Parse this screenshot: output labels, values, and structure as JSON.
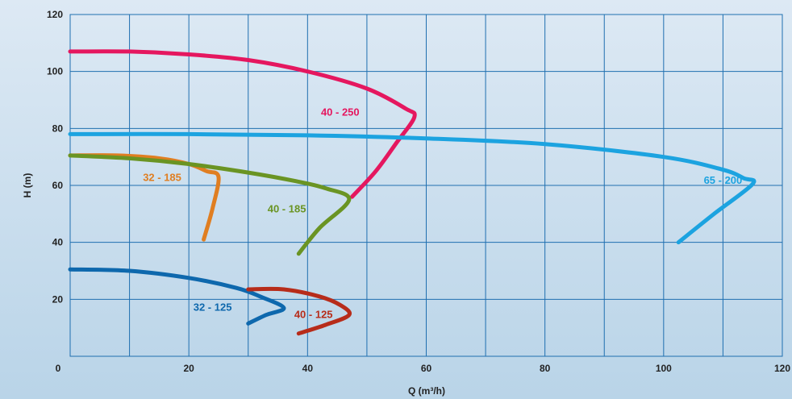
{
  "chart_data": {
    "type": "line",
    "xlabel": "Q (m³/h)",
    "ylabel": "H (m)",
    "xlim": [
      0,
      120
    ],
    "ylim": [
      0,
      120
    ],
    "x_ticks": [
      0,
      20,
      40,
      60,
      80,
      100,
      120
    ],
    "y_ticks": [
      20,
      40,
      60,
      80,
      100,
      120
    ],
    "x_grid_step": 10,
    "y_grid_step": 20,
    "grid": true,
    "series": [
      {
        "name": "40 - 250",
        "color": "#e5175f",
        "x": [
          0,
          10,
          20,
          30,
          40,
          50,
          56.5,
          58,
          55,
          51.5,
          47.5
        ],
        "y": [
          107,
          107,
          106,
          104,
          100,
          94,
          87,
          84,
          75,
          65,
          56
        ]
      },
      {
        "name": "65 - 200",
        "color": "#1ca3e0",
        "x": [
          0,
          20,
          40,
          60,
          80,
          100,
          110,
          113.5,
          115,
          108.5,
          102.5
        ],
        "y": [
          78,
          78,
          77.6,
          76.5,
          74.5,
          70,
          65.5,
          62.5,
          60.5,
          50,
          40
        ]
      },
      {
        "name": "32 - 185",
        "color": "#e07e21",
        "x": [
          0,
          8,
          15,
          20,
          23,
          25,
          24,
          22.5
        ],
        "y": [
          70.5,
          70.5,
          69.5,
          67.5,
          65,
          63,
          52,
          41
        ]
      },
      {
        "name": "40 - 185",
        "color": "#6a9423",
        "x": [
          0,
          10,
          20,
          30,
          38,
          43,
          47,
          42,
          38.5
        ],
        "y": [
          70.5,
          69.5,
          67.5,
          64.5,
          61.5,
          59,
          55,
          45,
          36
        ]
      },
      {
        "name": "32 - 125",
        "color": "#0e68ad",
        "x": [
          0,
          10,
          20,
          28,
          32,
          36,
          33,
          30
        ],
        "y": [
          30.5,
          30,
          27.5,
          24,
          21,
          17,
          14.5,
          11.5
        ]
      },
      {
        "name": "40 - 125",
        "color": "#b72c1a",
        "x": [
          30,
          36,
          42,
          45.5,
          47,
          43,
          38.5
        ],
        "y": [
          23.5,
          23.5,
          21,
          18,
          14.5,
          11,
          8
        ]
      }
    ],
    "labels": [
      {
        "text": "40 - 250",
        "x": 45.5,
        "y": 84.5,
        "color": "#e5175f"
      },
      {
        "text": "65 - 200",
        "x": 110,
        "y": 60.5,
        "color": "#1ca3e0"
      },
      {
        "text": "32 - 185",
        "x": 15.5,
        "y": 61.5,
        "color": "#e07e21"
      },
      {
        "text": "40 - 185",
        "x": 36.5,
        "y": 50.5,
        "color": "#6a9423"
      },
      {
        "text": "32 - 125",
        "x": 24,
        "y": 16,
        "color": "#0e68ad"
      },
      {
        "text": "40 - 125",
        "x": 41,
        "y": 13.5,
        "color": "#b72c1a"
      }
    ]
  }
}
